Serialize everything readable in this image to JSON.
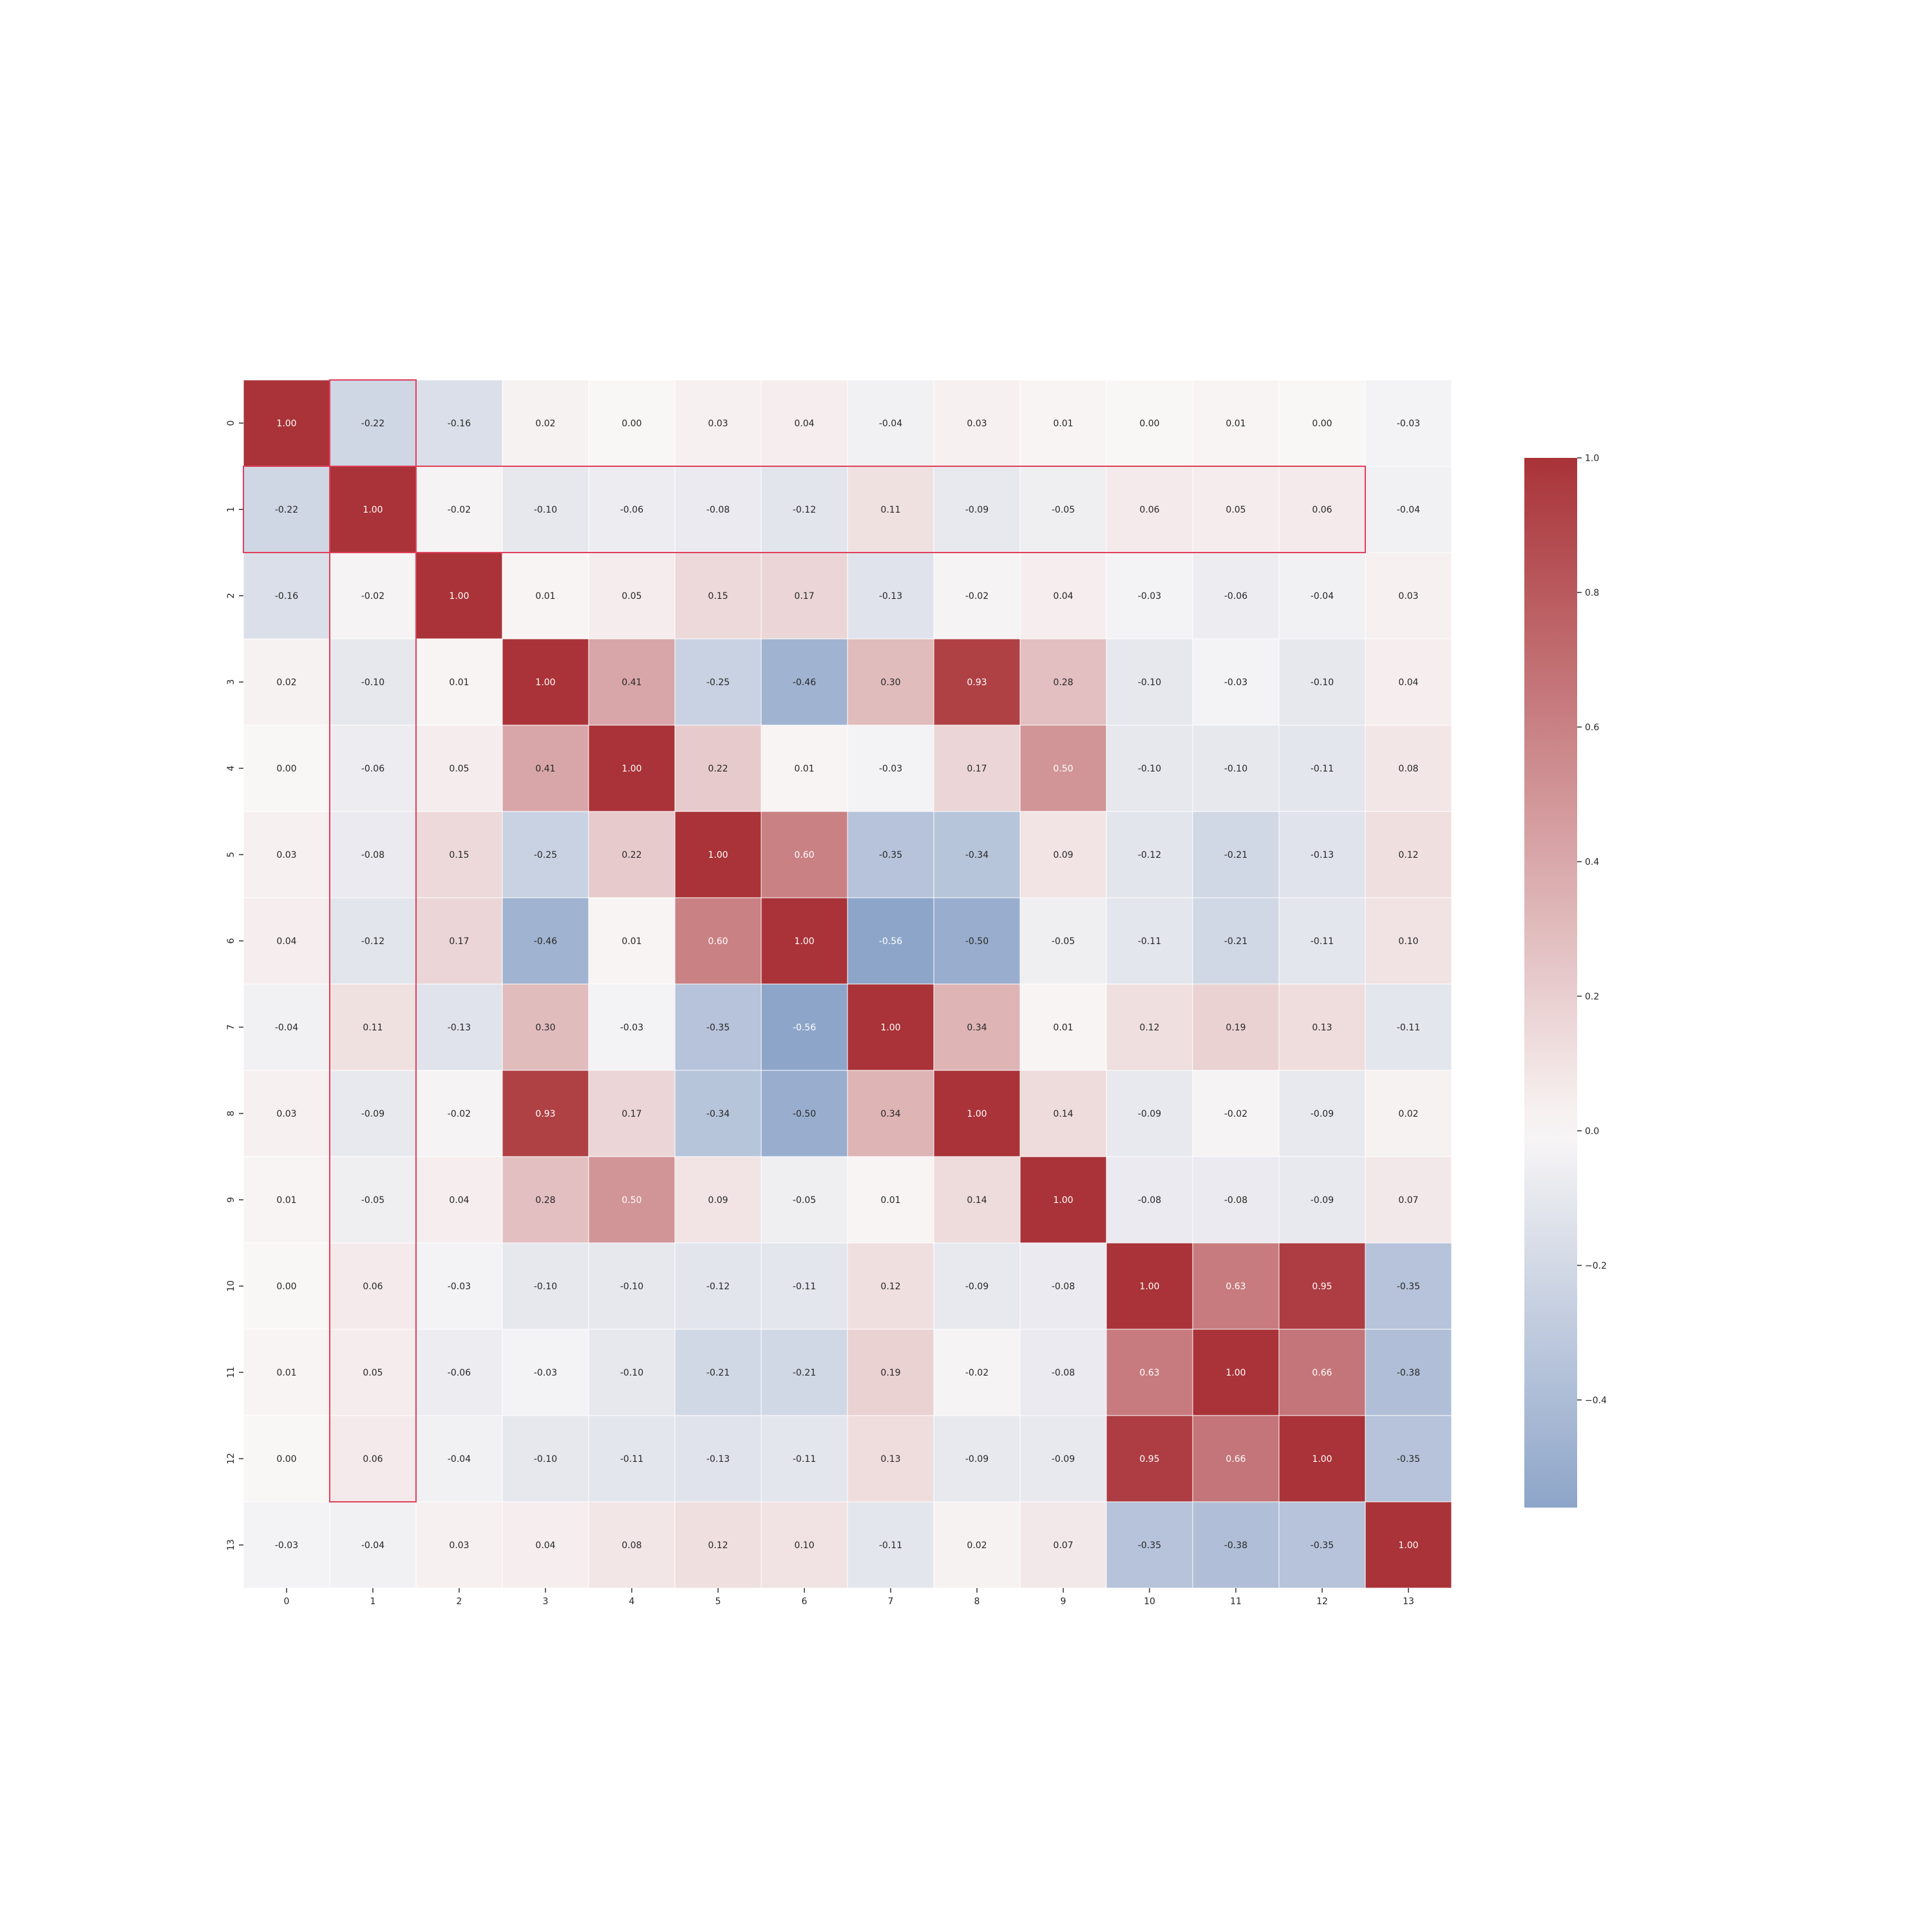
{
  "chart_data": {
    "type": "heatmap",
    "title": "",
    "xlabel": "",
    "ylabel": "",
    "x_labels": [
      "0",
      "1",
      "2",
      "3",
      "4",
      "5",
      "6",
      "7",
      "8",
      "9",
      "10",
      "11",
      "12",
      "13"
    ],
    "y_labels": [
      "0",
      "1",
      "2",
      "3",
      "4",
      "5",
      "6",
      "7",
      "8",
      "9",
      "10",
      "11",
      "12",
      "13"
    ],
    "matrix": [
      [
        "1.00",
        "-0.22",
        "-0.16",
        "0.02",
        "0.00",
        "0.03",
        "0.04",
        "-0.04",
        "0.03",
        "0.01",
        "0.00",
        "0.01",
        "0.00",
        "-0.03"
      ],
      [
        "-0.22",
        "1.00",
        "-0.02",
        "-0.10",
        "-0.06",
        "-0.08",
        "-0.12",
        "0.11",
        "-0.09",
        "-0.05",
        "0.06",
        "0.05",
        "0.06",
        "-0.04"
      ],
      [
        "-0.16",
        "-0.02",
        "1.00",
        "0.01",
        "0.05",
        "0.15",
        "0.17",
        "-0.13",
        "-0.02",
        "0.04",
        "-0.03",
        "-0.06",
        "-0.04",
        "0.03"
      ],
      [
        "0.02",
        "-0.10",
        "0.01",
        "1.00",
        "0.41",
        "-0.25",
        "-0.46",
        "0.30",
        "0.93",
        "0.28",
        "-0.10",
        "-0.03",
        "-0.10",
        "0.04"
      ],
      [
        "0.00",
        "-0.06",
        "0.05",
        "0.41",
        "1.00",
        "0.22",
        "0.01",
        "-0.03",
        "0.17",
        "0.50",
        "-0.10",
        "-0.10",
        "-0.11",
        "0.08"
      ],
      [
        "0.03",
        "-0.08",
        "0.15",
        "-0.25",
        "0.22",
        "1.00",
        "0.60",
        "-0.35",
        "-0.34",
        "0.09",
        "-0.12",
        "-0.21",
        "-0.13",
        "0.12"
      ],
      [
        "0.04",
        "-0.12",
        "0.17",
        "-0.46",
        "0.01",
        "0.60",
        "1.00",
        "-0.56",
        "-0.50",
        "-0.05",
        "-0.11",
        "-0.21",
        "-0.11",
        "0.10"
      ],
      [
        "-0.04",
        "0.11",
        "-0.13",
        "0.30",
        "-0.03",
        "-0.35",
        "-0.56",
        "1.00",
        "0.34",
        "0.01",
        "0.12",
        "0.19",
        "0.13",
        "-0.11"
      ],
      [
        "0.03",
        "-0.09",
        "-0.02",
        "0.93",
        "0.17",
        "-0.34",
        "-0.50",
        "0.34",
        "1.00",
        "0.14",
        "-0.09",
        "-0.02",
        "-0.09",
        "0.02"
      ],
      [
        "0.01",
        "-0.05",
        "0.04",
        "0.28",
        "0.50",
        "0.09",
        "-0.05",
        "0.01",
        "0.14",
        "1.00",
        "-0.08",
        "-0.08",
        "-0.09",
        "0.07"
      ],
      [
        "0.00",
        "0.06",
        "-0.03",
        "-0.10",
        "-0.10",
        "-0.12",
        "-0.11",
        "0.12",
        "-0.09",
        "-0.08",
        "1.00",
        "0.63",
        "0.95",
        "-0.35"
      ],
      [
        "0.01",
        "0.05",
        "-0.06",
        "-0.03",
        "-0.10",
        "-0.21",
        "-0.21",
        "0.19",
        "-0.02",
        "-0.08",
        "0.63",
        "1.00",
        "0.66",
        "-0.38"
      ],
      [
        "0.00",
        "0.06",
        "-0.04",
        "-0.10",
        "-0.11",
        "-0.13",
        "-0.11",
        "0.13",
        "-0.09",
        "-0.09",
        "0.95",
        "0.66",
        "1.00",
        "-0.35"
      ],
      [
        "-0.03",
        "-0.04",
        "0.03",
        "0.04",
        "0.08",
        "0.12",
        "0.10",
        "-0.11",
        "0.02",
        "0.07",
        "-0.35",
        "-0.38",
        "-0.35",
        "1.00"
      ]
    ],
    "colorbar": {
      "min": -0.56,
      "max": 1.0,
      "ticks": [
        1.0,
        0.8,
        0.6,
        0.4,
        0.2,
        0.0,
        -0.2,
        -0.4
      ],
      "tick_labels": [
        "1.0",
        "0.8",
        "0.6",
        "0.4",
        "0.2",
        "0.0",
        "−0.2",
        "−0.4"
      ]
    },
    "colormap": {
      "negative": "#8da5c9",
      "center": "#f9f6f6",
      "positive": "#a93338"
    },
    "highlights": [
      {
        "kind": "column",
        "col": 1,
        "row_from": 0,
        "row_to": 12,
        "color": "#e0405b"
      },
      {
        "kind": "row",
        "row": 1,
        "col_from": 0,
        "col_to": 12,
        "color": "#e0405b"
      }
    ],
    "grid": false,
    "legend": "colorbar-right"
  }
}
